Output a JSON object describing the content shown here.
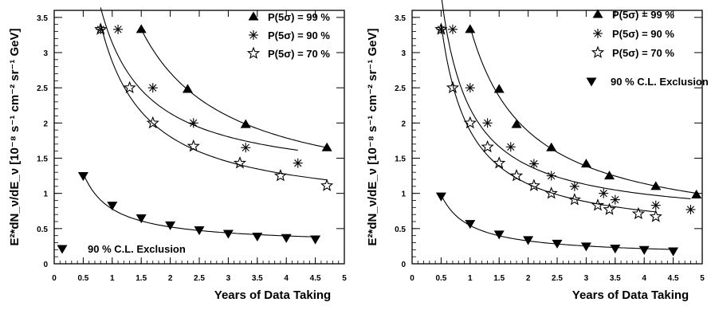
{
  "chart_data": [
    {
      "type": "scatter",
      "xlabel": "Years of Data Taking",
      "ylabel": "E²*dN_ν/dE_ν [10⁻⁸ s⁻¹ cm⁻² sr⁻¹ GeV]",
      "xlim": [
        0,
        5
      ],
      "ylim": [
        0,
        3.6
      ],
      "xticks": [
        "0",
        "0.5",
        "1",
        "1.5",
        "2",
        "2.5",
        "3",
        "3.5",
        "4",
        "4.5",
        "5"
      ],
      "yticks": [
        "0",
        "0.5",
        "1",
        "1.5",
        "2",
        "2.5",
        "3",
        "3.5"
      ],
      "legend_position": "top-right",
      "series": [
        {
          "name": "P(5σ) = 99 %",
          "marker": "triangle-up",
          "x": [
            1.5,
            2.3,
            3.3,
            4.7
          ],
          "y": [
            3.33,
            2.48,
            1.98,
            1.65
          ]
        },
        {
          "name": "P(5σ) = 90 %",
          "marker": "asterisk",
          "x": [
            0.8,
            1.1,
            1.7,
            2.4,
            3.3,
            4.2
          ],
          "y": [
            3.33,
            3.33,
            2.5,
            2.0,
            1.65,
            1.43
          ]
        },
        {
          "name": "P(5σ) = 70 %",
          "marker": "star-open",
          "x": [
            0.8,
            1.3,
            1.7,
            2.4,
            3.2,
            3.9,
            4.7
          ],
          "y": [
            3.33,
            2.5,
            2.0,
            1.67,
            1.43,
            1.25,
            1.11
          ]
        },
        {
          "name": "90 % C.L. Exclusion",
          "marker": "triangle-down",
          "x": [
            0.5,
            1.0,
            1.5,
            2.0,
            2.5,
            3.0,
            3.5,
            4.0,
            4.5
          ],
          "y": [
            1.25,
            0.83,
            0.65,
            0.55,
            0.48,
            0.43,
            0.39,
            0.37,
            0.35
          ]
        }
      ]
    },
    {
      "type": "scatter",
      "xlabel": "Years of Data Taking",
      "ylabel": "E²*dN_ν/dE_ν [10⁻⁸ s⁻¹ cm⁻² sr⁻¹ GeV]",
      "xlim": [
        0,
        5
      ],
      "ylim": [
        0,
        3.6
      ],
      "xticks": [
        "0",
        "0.5",
        "1",
        "1.5",
        "2",
        "2.5",
        "3",
        "3.5",
        "4",
        "4.5",
        "5"
      ],
      "yticks": [
        "0",
        "0.5",
        "1",
        "1.5",
        "2",
        "2.5",
        "3",
        "3.5"
      ],
      "legend_position": "top-right",
      "series": [
        {
          "name": "P(5σ) = 99 %",
          "marker": "triangle-up",
          "x": [
            1.0,
            1.5,
            1.8,
            2.4,
            3.0,
            3.4,
            4.2,
            4.9
          ],
          "y": [
            3.33,
            2.48,
            1.98,
            1.65,
            1.42,
            1.25,
            1.1,
            0.98
          ]
        },
        {
          "name": "P(5σ) = 90 %",
          "marker": "asterisk",
          "x": [
            0.5,
            0.7,
            1.0,
            1.3,
            1.7,
            2.1,
            2.4,
            2.8,
            3.3,
            3.5,
            4.2,
            4.8
          ],
          "y": [
            3.33,
            3.33,
            2.5,
            2.0,
            1.66,
            1.42,
            1.25,
            1.1,
            1.0,
            0.91,
            0.83,
            0.77
          ]
        },
        {
          "name": "P(5σ) = 70 %",
          "marker": "star-open",
          "x": [
            0.5,
            0.7,
            1.0,
            1.3,
            1.5,
            1.8,
            2.1,
            2.4,
            2.8,
            3.2,
            3.4,
            3.9,
            4.2
          ],
          "y": [
            3.33,
            2.5,
            2.0,
            1.66,
            1.43,
            1.25,
            1.11,
            1.0,
            0.91,
            0.83,
            0.77,
            0.71,
            0.67
          ]
        },
        {
          "name": "90 % C.L. Exclusion",
          "marker": "triangle-down",
          "x": [
            0.5,
            1.0,
            1.5,
            2.0,
            2.5,
            3.0,
            3.5,
            4.0,
            4.5
          ],
          "y": [
            0.96,
            0.57,
            0.42,
            0.34,
            0.29,
            0.25,
            0.22,
            0.2,
            0.18
          ]
        }
      ]
    }
  ]
}
